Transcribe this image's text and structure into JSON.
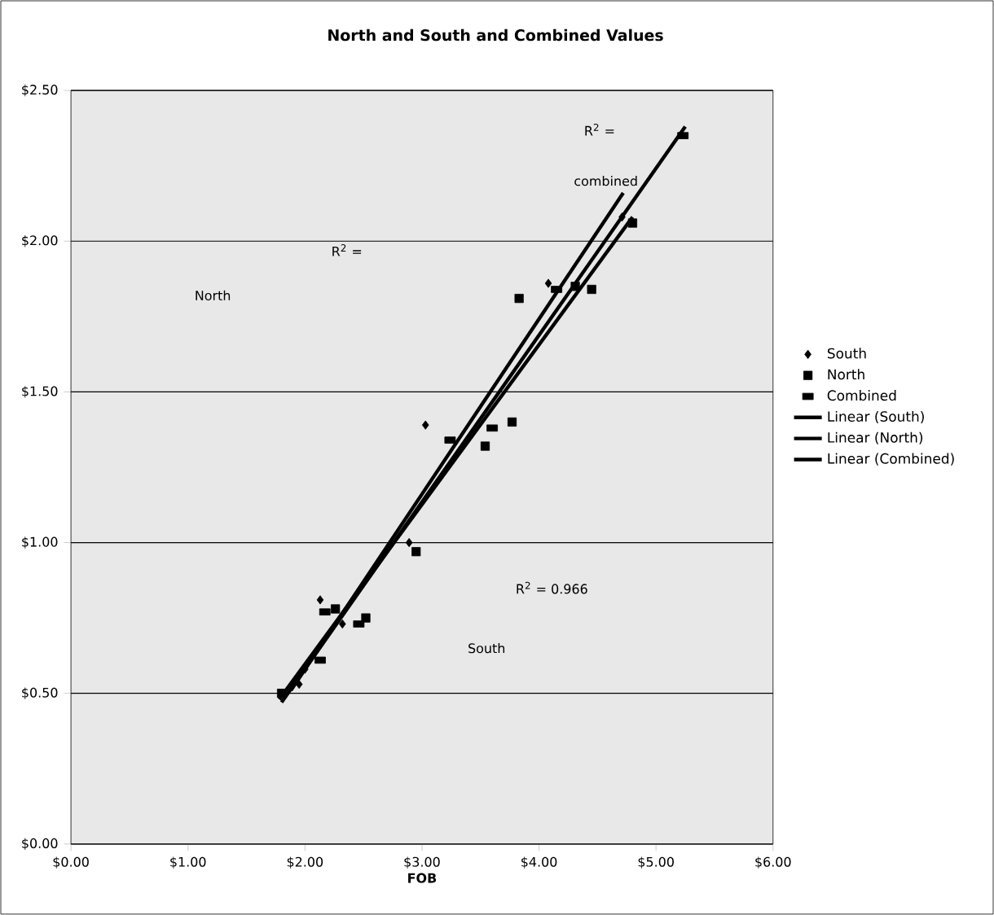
{
  "chart_data": {
    "type": "scatter",
    "title": "North and South and Combined Values",
    "xlabel": "FOB",
    "xlim": [
      0,
      6
    ],
    "ylim": [
      0,
      2.5
    ],
    "xticks": [
      {
        "value": 0,
        "label": "$0.00"
      },
      {
        "value": 1,
        "label": "$1.00"
      },
      {
        "value": 2,
        "label": "$2.00"
      },
      {
        "value": 3,
        "label": "$3.00"
      },
      {
        "value": 4,
        "label": "$4.00"
      },
      {
        "value": 5,
        "label": "$5.00"
      },
      {
        "value": 6,
        "label": "$6.00"
      }
    ],
    "yticks": [
      {
        "value": 0,
        "label": "$0.00"
      },
      {
        "value": 0.5,
        "label": "$0.50"
      },
      {
        "value": 1,
        "label": "$1.00"
      },
      {
        "value": 1.5,
        "label": "$1.50"
      },
      {
        "value": 2,
        "label": "$2.00"
      },
      {
        "value": 2.5,
        "label": "$2.50"
      }
    ],
    "grid": "y",
    "legend": "right",
    "series": [
      {
        "name": "South",
        "color": "#000000",
        "marker": "diamond",
        "x": [
          1.95,
          2.0,
          2.13,
          2.32,
          2.89,
          3.03,
          4.08,
          4.71
        ],
        "values": [
          0.53,
          0.58,
          0.81,
          0.73,
          1.0,
          1.39,
          1.86,
          2.08
        ]
      },
      {
        "name": "North",
        "color": "#000000",
        "marker": "square",
        "x": [
          1.8,
          2.26,
          2.52,
          2.95,
          3.54,
          3.77,
          3.83,
          4.31,
          4.45,
          4.8
        ],
        "values": [
          0.5,
          0.78,
          0.75,
          0.97,
          1.32,
          1.4,
          1.81,
          1.85,
          1.84,
          2.06
        ]
      },
      {
        "name": "Combined",
        "color": "#000000",
        "x": [
          2.13,
          2.17,
          2.46,
          3.24,
          3.6,
          4.15,
          5.23
        ],
        "values": [
          0.61,
          0.77,
          0.73,
          1.34,
          1.38,
          1.84,
          2.35
        ]
      },
      {
        "name": "Linear (South)",
        "type": "line",
        "color": "#000000",
        "marker": "none",
        "x": [
          1.88,
          4.72
        ],
        "values": [
          0.51,
          2.16
        ]
      },
      {
        "name": "Linear (North)",
        "type": "line",
        "color": "#000000",
        "marker": "none",
        "x": [
          1.78,
          4.8
        ],
        "values": [
          0.48,
          2.08
        ]
      },
      {
        "name": "Linear (Combined)",
        "type": "line",
        "color": "#000000",
        "marker": "none",
        "x": [
          1.8,
          5.25
        ],
        "values": [
          0.47,
          2.38
        ]
      }
    ],
    "annotations": [
      "R$^{2}$ =",
      "combined",
      "R$^{2}$ =",
      "North",
      "R$^{2}$ = 0.966",
      "South"
    ]
  }
}
